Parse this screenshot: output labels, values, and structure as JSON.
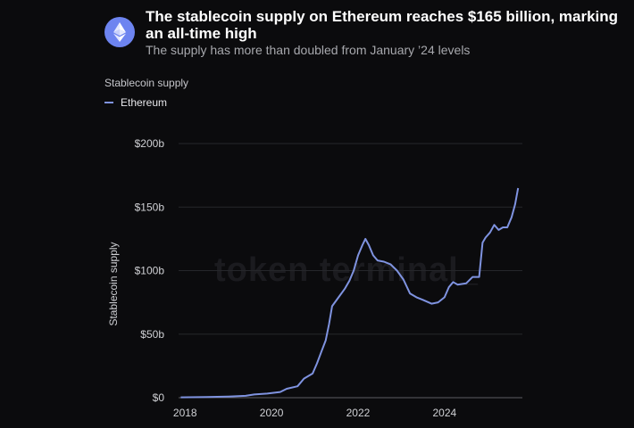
{
  "header": {
    "title": "The stablecoin supply on Ethereum reaches $165 billion, marking an all-time high",
    "subtitle": "The supply has more than doubled from January ’24 levels",
    "logo_icon": "ethereum-icon",
    "logo_color": "#6d84f0"
  },
  "panel_label": "Stablecoin supply",
  "watermark": "token terminal_",
  "chart_data": {
    "type": "line",
    "title": "The stablecoin supply on Ethereum reaches $165 billion, marking an all-time high",
    "subtitle": "The supply has more than doubled from January ’24 levels",
    "ylabel": "Stablecoin supply",
    "xlabel": "",
    "xlim": [
      2017.85,
      2025.8
    ],
    "ylim": [
      0,
      200
    ],
    "grid": true,
    "legend_position": "top-left",
    "y_ticks": [
      {
        "value": 0,
        "label": "$0"
      },
      {
        "value": 50,
        "label": "$50b"
      },
      {
        "value": 100,
        "label": "$100b"
      },
      {
        "value": 150,
        "label": "$150b"
      },
      {
        "value": 200,
        "label": "$200b"
      }
    ],
    "x_ticks": [
      {
        "value": 2018,
        "label": "2018"
      },
      {
        "value": 2020,
        "label": "2020"
      },
      {
        "value": 2022,
        "label": "2022"
      },
      {
        "value": 2024,
        "label": "2024"
      }
    ],
    "series": [
      {
        "name": "Ethereum",
        "color": "#7f93e0",
        "points": [
          [
            2017.9,
            0.3
          ],
          [
            2018.5,
            0.5
          ],
          [
            2019.0,
            0.9
          ],
          [
            2019.4,
            1.5
          ],
          [
            2019.6,
            2.5
          ],
          [
            2019.9,
            3.2
          ],
          [
            2020.2,
            4.5
          ],
          [
            2020.35,
            7
          ],
          [
            2020.6,
            9
          ],
          [
            2020.75,
            15
          ],
          [
            2020.95,
            19
          ],
          [
            2021.05,
            27
          ],
          [
            2021.15,
            36
          ],
          [
            2021.25,
            45
          ],
          [
            2021.33,
            58
          ],
          [
            2021.4,
            72
          ],
          [
            2021.55,
            79
          ],
          [
            2021.7,
            86
          ],
          [
            2021.8,
            92
          ],
          [
            2021.9,
            100
          ],
          [
            2022.0,
            112
          ],
          [
            2022.1,
            120
          ],
          [
            2022.17,
            125
          ],
          [
            2022.25,
            120
          ],
          [
            2022.35,
            112
          ],
          [
            2022.45,
            108
          ],
          [
            2022.6,
            107
          ],
          [
            2022.75,
            105
          ],
          [
            2022.9,
            100
          ],
          [
            2023.05,
            93
          ],
          [
            2023.2,
            82
          ],
          [
            2023.35,
            79
          ],
          [
            2023.5,
            77
          ],
          [
            2023.7,
            74
          ],
          [
            2023.85,
            75
          ],
          [
            2024.0,
            79
          ],
          [
            2024.1,
            87
          ],
          [
            2024.2,
            91
          ],
          [
            2024.3,
            89
          ],
          [
            2024.5,
            90
          ],
          [
            2024.65,
            95
          ],
          [
            2024.8,
            95
          ],
          [
            2024.88,
            122
          ],
          [
            2024.95,
            126
          ],
          [
            2025.05,
            130
          ],
          [
            2025.15,
            136
          ],
          [
            2025.25,
            132
          ],
          [
            2025.35,
            134
          ],
          [
            2025.45,
            134
          ],
          [
            2025.55,
            142
          ],
          [
            2025.63,
            152
          ],
          [
            2025.7,
            165
          ]
        ]
      }
    ]
  }
}
